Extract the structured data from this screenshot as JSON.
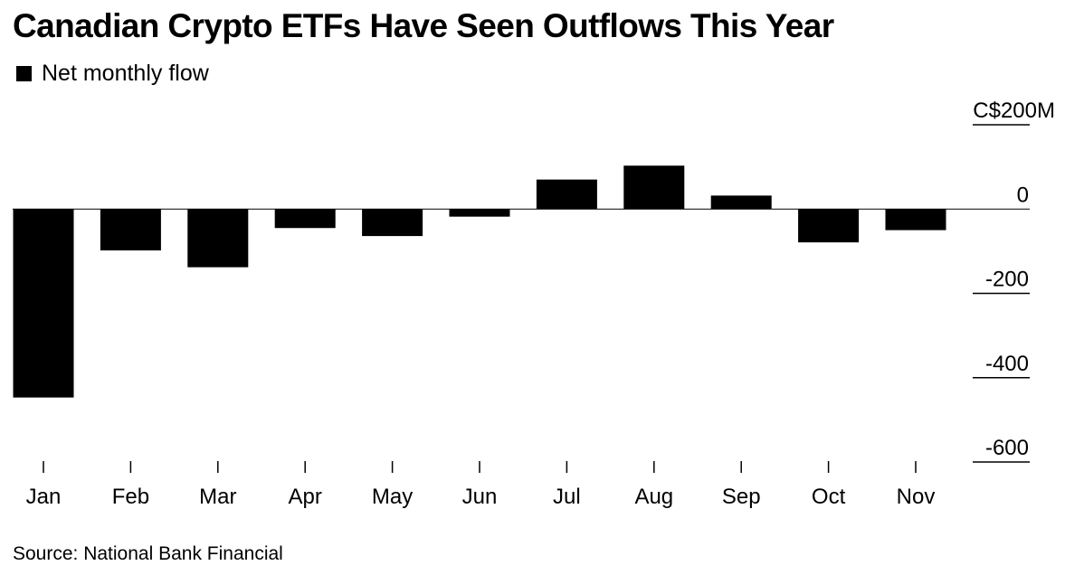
{
  "title": "Canadian Crypto ETFs Have Seen Outflows This Year",
  "legend": {
    "label": "Net monthly flow",
    "color": "#000000"
  },
  "source": "Source: National Bank Financial",
  "chart_data": {
    "type": "bar",
    "categories": [
      "Jan",
      "Feb",
      "Mar",
      "Apr",
      "May",
      "Jun",
      "Jul",
      "Aug",
      "Sep",
      "Oct",
      "Nov"
    ],
    "series": [
      {
        "name": "Net monthly flow",
        "values": [
          -447,
          -98,
          -138,
          -45,
          -64,
          -18,
          70,
          103,
          32,
          -79,
          -50
        ]
      }
    ],
    "ylim": [
      -600,
      200
    ],
    "yticks": [
      200,
      0,
      -200,
      -400,
      -600
    ],
    "ytick_labels": [
      "C$200M",
      "0",
      "-200",
      "-400",
      "-600"
    ],
    "axis_position": "right",
    "grid": false,
    "legend_position": "top-left",
    "bar_color": "#000000"
  }
}
